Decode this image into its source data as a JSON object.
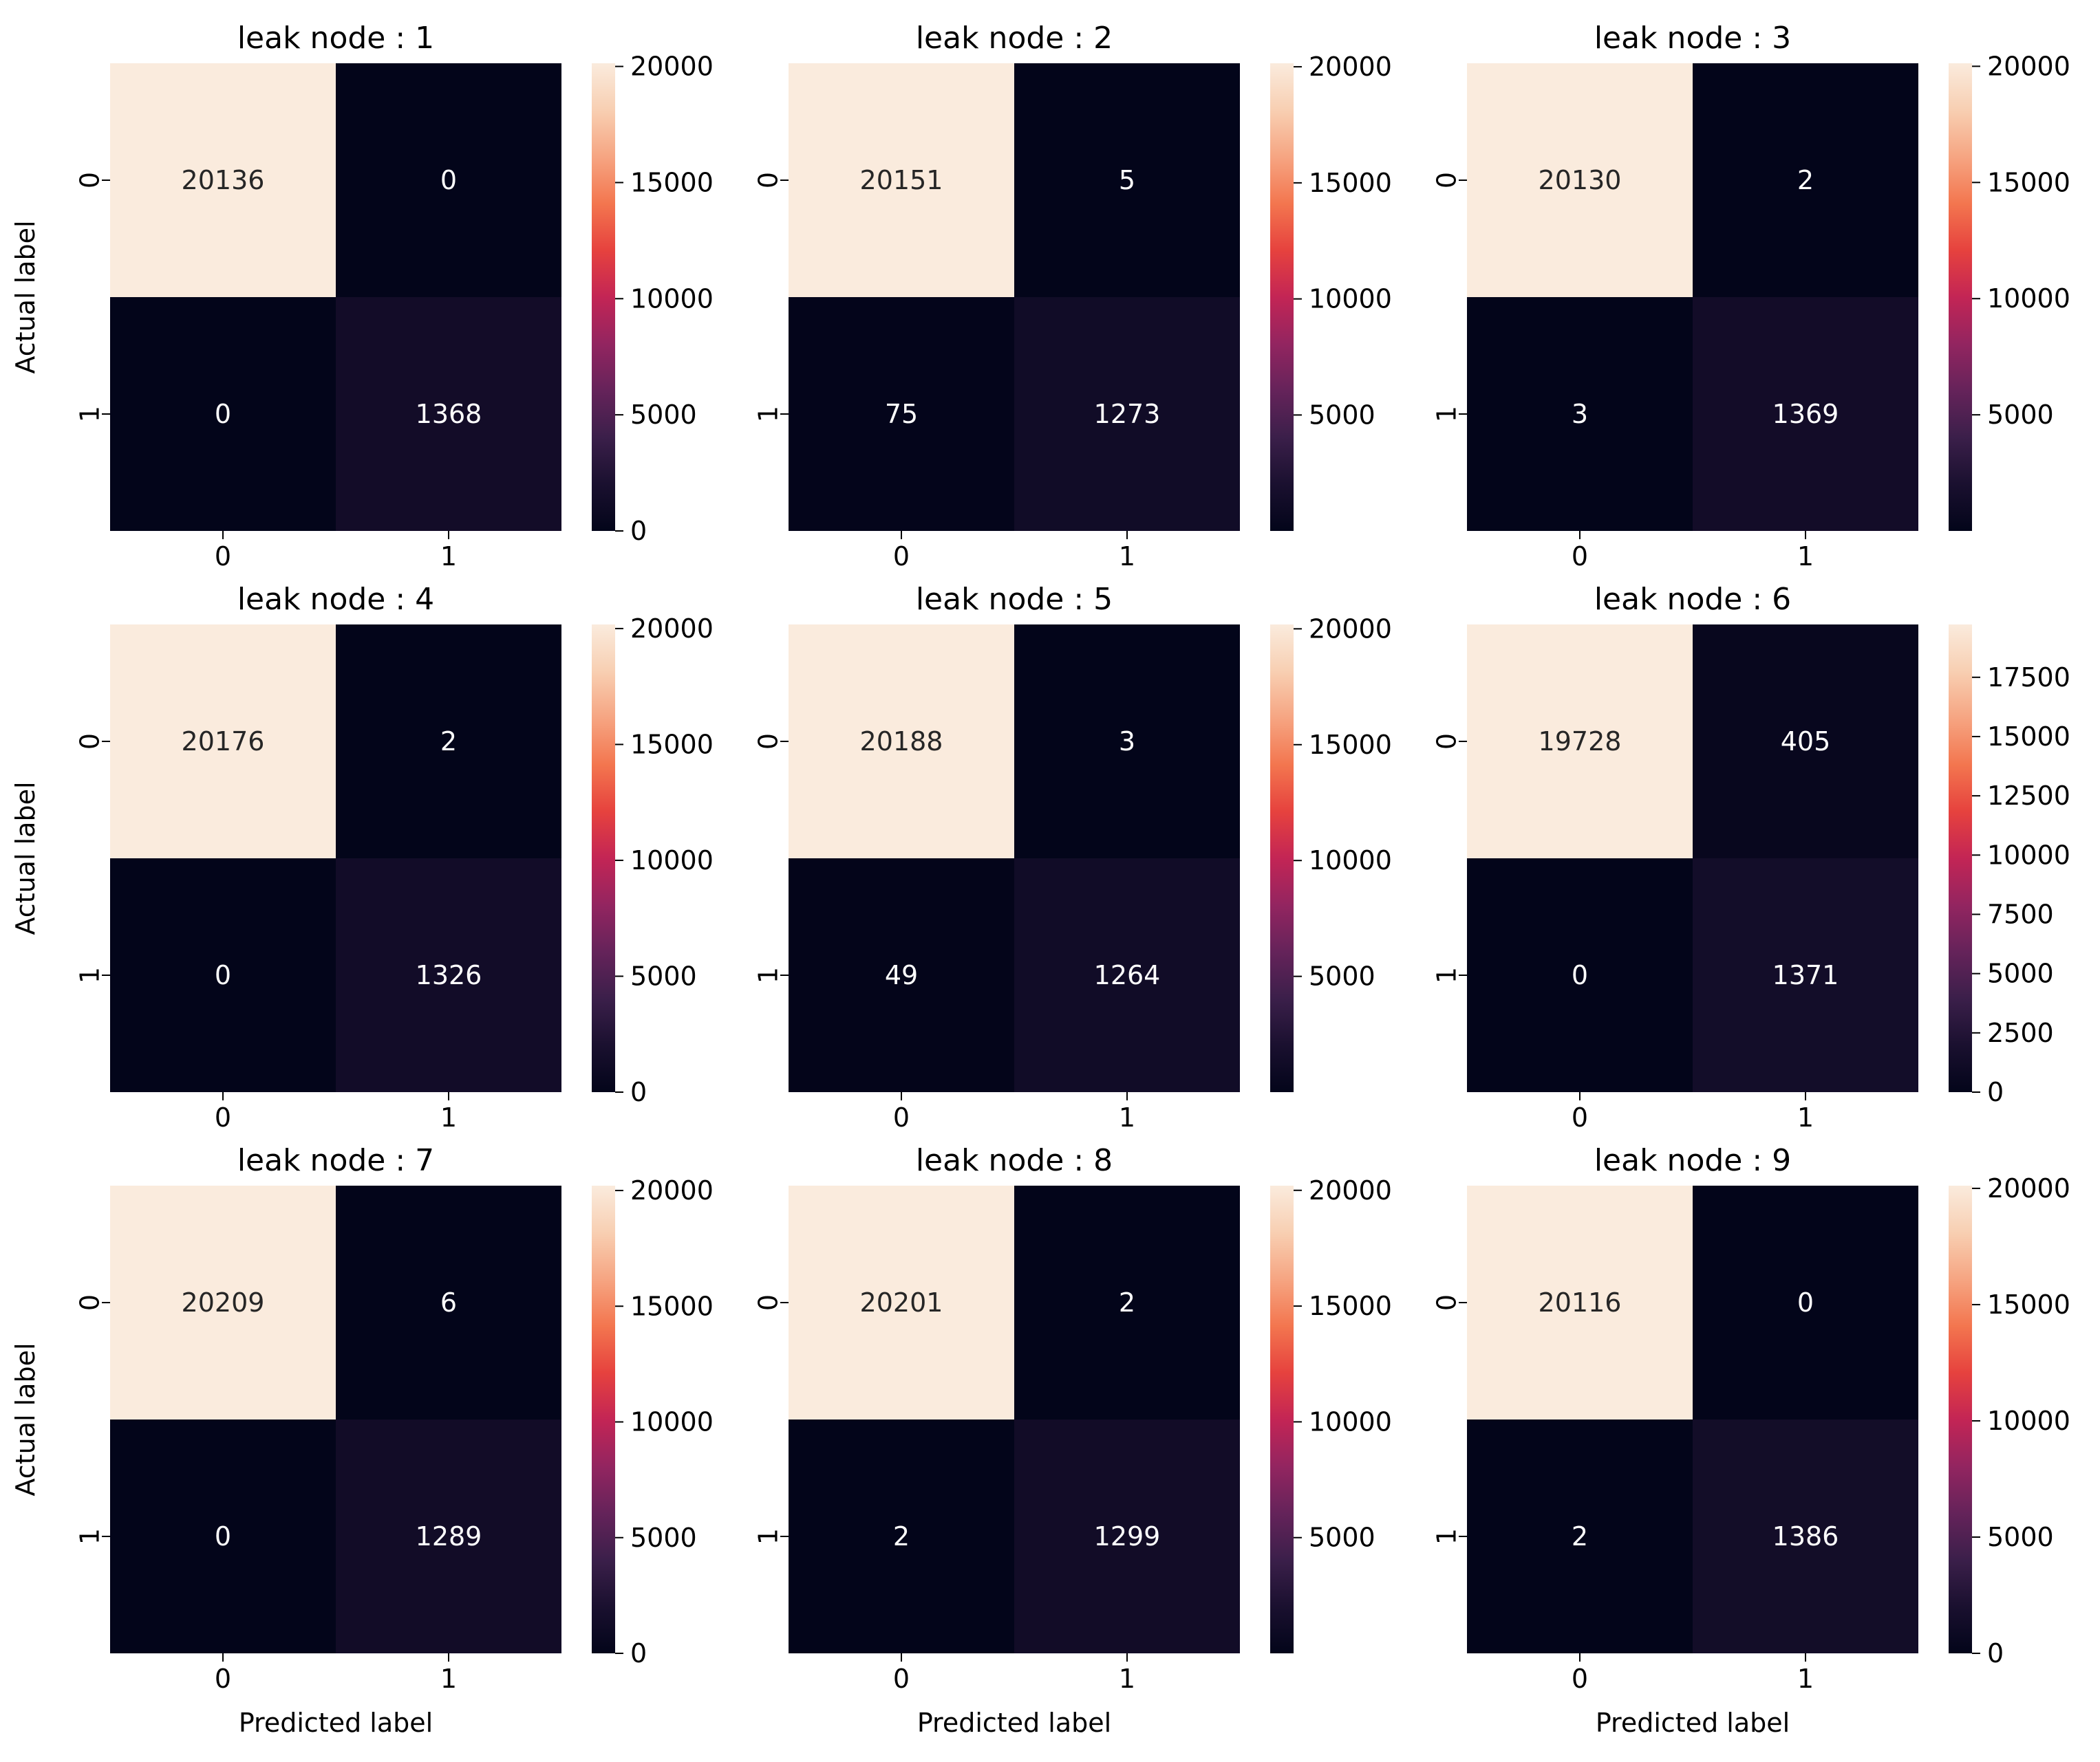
{
  "chart_data": [
    {
      "type": "heatmap",
      "title": "leak node : 1",
      "xlabel": "",
      "ylabel": "Actual label",
      "x_categories": [
        "0",
        "1"
      ],
      "y_categories": [
        "0",
        "1"
      ],
      "values": [
        [
          20136,
          0
        ],
        [
          0,
          1368
        ]
      ],
      "colorbar": {
        "min": 0,
        "max": 20136,
        "ticks": [
          0,
          5000,
          10000,
          15000,
          20000
        ]
      }
    },
    {
      "type": "heatmap",
      "title": "leak node : 2",
      "xlabel": "",
      "ylabel": "",
      "x_categories": [
        "0",
        "1"
      ],
      "y_categories": [
        "0",
        "1"
      ],
      "values": [
        [
          20151,
          5
        ],
        [
          75,
          1273
        ]
      ],
      "colorbar": {
        "min": 5,
        "max": 20151,
        "ticks": [
          5000,
          10000,
          15000,
          20000
        ]
      }
    },
    {
      "type": "heatmap",
      "title": "leak node : 3",
      "xlabel": "",
      "ylabel": "",
      "x_categories": [
        "0",
        "1"
      ],
      "y_categories": [
        "0",
        "1"
      ],
      "values": [
        [
          20130,
          2
        ],
        [
          3,
          1369
        ]
      ],
      "colorbar": {
        "min": 2,
        "max": 20130,
        "ticks": [
          5000,
          10000,
          15000,
          20000
        ]
      }
    },
    {
      "type": "heatmap",
      "title": "leak node : 4",
      "xlabel": "",
      "ylabel": "Actual label",
      "x_categories": [
        "0",
        "1"
      ],
      "y_categories": [
        "0",
        "1"
      ],
      "values": [
        [
          20176,
          2
        ],
        [
          0,
          1326
        ]
      ],
      "colorbar": {
        "min": 0,
        "max": 20176,
        "ticks": [
          0,
          5000,
          10000,
          15000,
          20000
        ]
      }
    },
    {
      "type": "heatmap",
      "title": "leak node : 5",
      "xlabel": "",
      "ylabel": "",
      "x_categories": [
        "0",
        "1"
      ],
      "y_categories": [
        "0",
        "1"
      ],
      "values": [
        [
          20188,
          3
        ],
        [
          49,
          1264
        ]
      ],
      "colorbar": {
        "min": 3,
        "max": 20188,
        "ticks": [
          5000,
          10000,
          15000,
          20000
        ]
      }
    },
    {
      "type": "heatmap",
      "title": "leak node : 6",
      "xlabel": "",
      "ylabel": "",
      "x_categories": [
        "0",
        "1"
      ],
      "y_categories": [
        "0",
        "1"
      ],
      "values": [
        [
          19728,
          405
        ],
        [
          0,
          1371
        ]
      ],
      "colorbar": {
        "min": 0,
        "max": 19728,
        "ticks": [
          0,
          2500,
          5000,
          7500,
          10000,
          12500,
          15000,
          17500
        ]
      }
    },
    {
      "type": "heatmap",
      "title": "leak node : 7",
      "xlabel": "Predicted label",
      "ylabel": "Actual label",
      "x_categories": [
        "0",
        "1"
      ],
      "y_categories": [
        "0",
        "1"
      ],
      "values": [
        [
          20209,
          6
        ],
        [
          0,
          1289
        ]
      ],
      "colorbar": {
        "min": 0,
        "max": 20209,
        "ticks": [
          0,
          5000,
          10000,
          15000,
          20000
        ]
      }
    },
    {
      "type": "heatmap",
      "title": "leak node : 8",
      "xlabel": "Predicted label",
      "ylabel": "",
      "x_categories": [
        "0",
        "1"
      ],
      "y_categories": [
        "0",
        "1"
      ],
      "values": [
        [
          20201,
          2
        ],
        [
          2,
          1299
        ]
      ],
      "colorbar": {
        "min": 2,
        "max": 20201,
        "ticks": [
          5000,
          10000,
          15000,
          20000
        ]
      }
    },
    {
      "type": "heatmap",
      "title": "leak node : 9",
      "xlabel": "Predicted label",
      "ylabel": "",
      "x_categories": [
        "0",
        "1"
      ],
      "y_categories": [
        "0",
        "1"
      ],
      "values": [
        [
          20116,
          0
        ],
        [
          2,
          1386
        ]
      ],
      "colorbar": {
        "min": 0,
        "max": 20116,
        "ticks": [
          0,
          5000,
          10000,
          15000,
          20000
        ]
      }
    }
  ],
  "colors": {
    "colormap": "rocket",
    "colormap_stops": [
      "#03051a",
      "#1a102f",
      "#3b1f4a",
      "#65235a",
      "#932560",
      "#c32555",
      "#e6423e",
      "#f3764f",
      "#f6a582",
      "#f8cfb2",
      "#faebdd"
    ],
    "text_on_dark": "#ffffff",
    "text_on_light": "#262626",
    "axis": "#000000"
  }
}
